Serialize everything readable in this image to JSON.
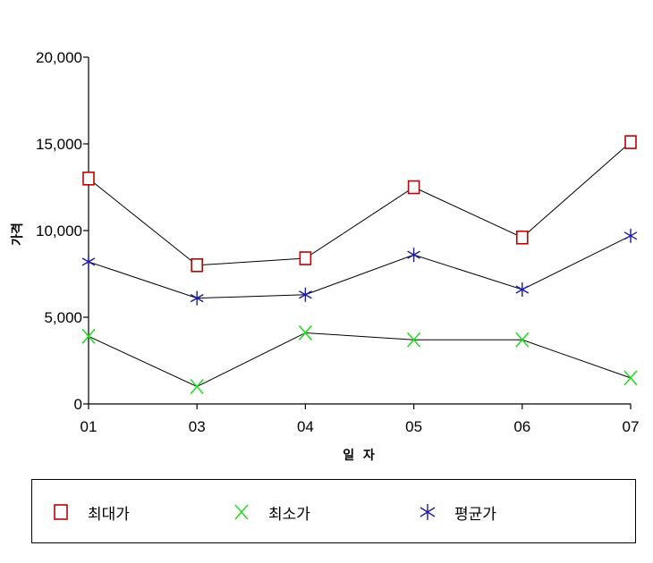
{
  "chart_data": {
    "type": "line",
    "categories": [
      "01",
      "03",
      "04",
      "05",
      "06",
      "07"
    ],
    "xlabel": "일  자",
    "ylabel": "가격",
    "ylim": [
      0,
      20000
    ],
    "yticks": [
      0,
      5000,
      10000,
      15000,
      20000
    ],
    "ytick_labels": [
      "0",
      "5,000",
      "10,000",
      "15,000",
      "20,000"
    ],
    "grid": false,
    "legend_position": "bottom",
    "line_color": "#000000",
    "series": [
      {
        "name": "최대가",
        "marker": "square",
        "color": "#c00000",
        "values": [
          13000,
          8000,
          8400,
          12500,
          9600,
          15100
        ]
      },
      {
        "name": "최소가",
        "marker": "x",
        "color": "#22dd22",
        "values": [
          3900,
          1000,
          4100,
          3700,
          3700,
          1500
        ]
      },
      {
        "name": "평균가",
        "marker": "star",
        "color": "#1a1aa6",
        "values": [
          8200,
          6100,
          6300,
          8600,
          6600,
          9700
        ]
      }
    ]
  }
}
